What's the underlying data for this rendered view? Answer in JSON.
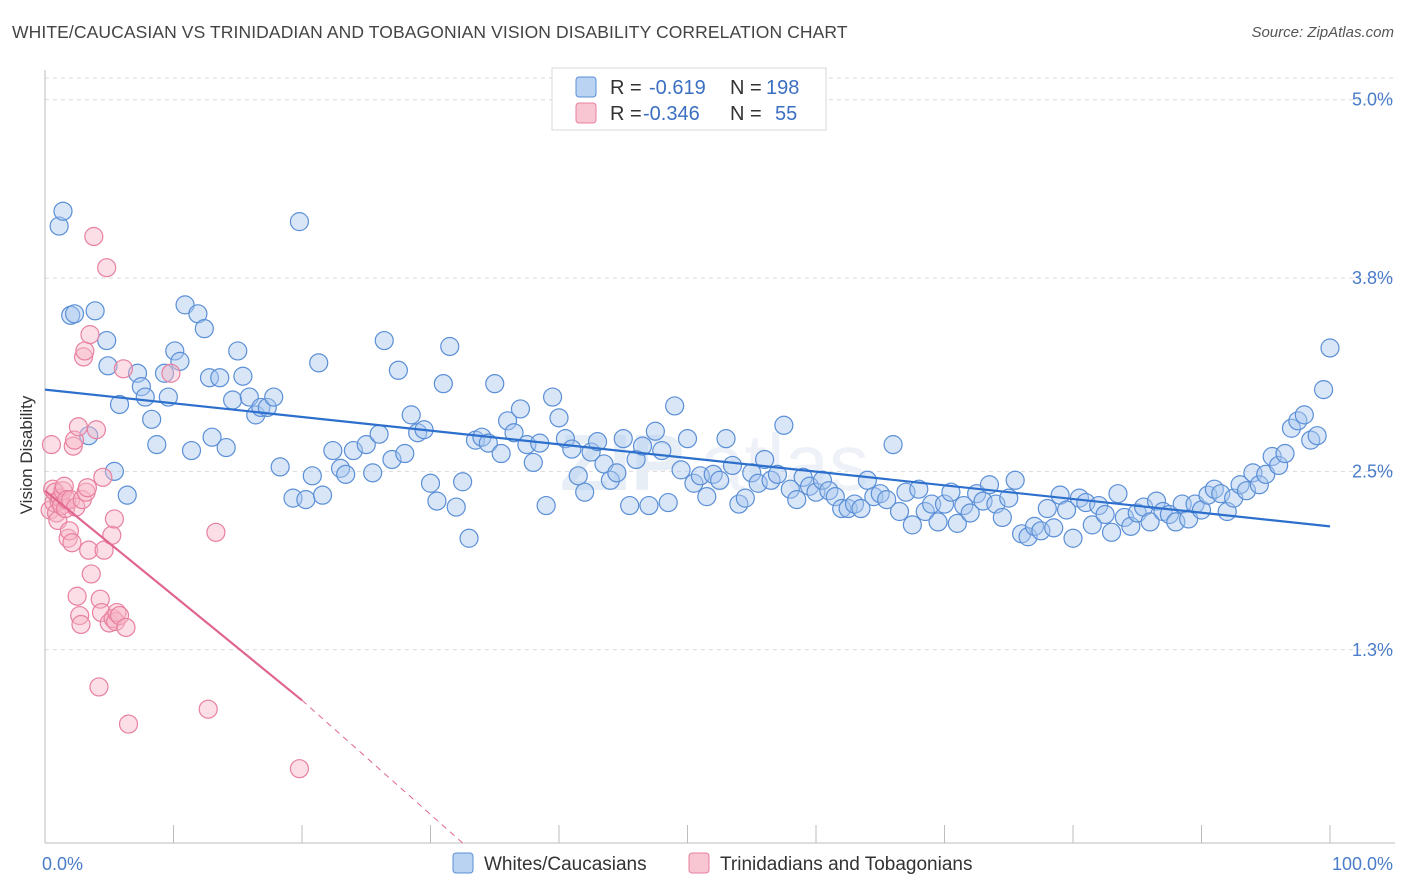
{
  "title": "WHITE/CAUCASIAN VS TRINIDADIAN AND TOBAGONIAN VISION DISABILITY CORRELATION CHART",
  "source": "Source: ZipAtlas.com",
  "colors": {
    "blue_fill": "#a9c8f0",
    "blue_stroke": "#5b8fd6",
    "blue_line": "#2c6fcc",
    "pink_fill": "#f6b6c8",
    "pink_stroke": "#e8809f",
    "pink_line": "#e0668f",
    "grid": "#d9d9d9",
    "axis_text": "#4a7cc9"
  },
  "legend": {
    "rows": [
      {
        "r_label": "R =",
        "r_value": "-0.619",
        "n_label": "N =",
        "n_value": "198"
      },
      {
        "r_label": "R =",
        "r_value": "-0.346",
        "n_label": "N =",
        "n_value": "55"
      }
    ]
  },
  "chart_data": {
    "type": "scatter",
    "title": "WHITE/CAUCASIAN VS TRINIDADIAN AND TOBAGONIAN VISION DISABILITY CORRELATION CHART",
    "xlabel": "",
    "ylabel": "Vision Disability",
    "xlim": [
      0,
      100
    ],
    "ylim": [
      0.0,
      5.2
    ],
    "x_tick_labels": [
      "0.0%",
      "100.0%"
    ],
    "y_ticks": [
      1.3,
      2.5,
      3.8,
      5.0
    ],
    "y_tick_labels": [
      "1.3%",
      "2.5%",
      "3.8%",
      "5.0%"
    ],
    "grid": "horizontal dashed",
    "legend_position": "top-center",
    "series": [
      {
        "name": "Whites/Caucasians",
        "color": "#a9c8f0",
        "trend": {
          "x": [
            0,
            100
          ],
          "y": [
            3.05,
            2.13
          ]
        },
        "points": [
          [
            1.1,
            4.15
          ],
          [
            1.4,
            4.25
          ],
          [
            2.0,
            3.55
          ],
          [
            2.3,
            3.56
          ],
          [
            3.9,
            3.58
          ],
          [
            4.8,
            3.38
          ],
          [
            4.9,
            3.21
          ],
          [
            3.4,
            2.74
          ],
          [
            5.4,
            2.5
          ],
          [
            5.8,
            2.95
          ],
          [
            6.4,
            2.34
          ],
          [
            7.2,
            3.16
          ],
          [
            7.5,
            3.07
          ],
          [
            7.8,
            3.0
          ],
          [
            8.3,
            2.85
          ],
          [
            8.7,
            2.68
          ],
          [
            9.3,
            3.16
          ],
          [
            9.6,
            3.0
          ],
          [
            10.1,
            3.31
          ],
          [
            10.5,
            3.24
          ],
          [
            10.9,
            3.62
          ],
          [
            11.4,
            2.64
          ],
          [
            11.9,
            3.56
          ],
          [
            12.4,
            3.46
          ],
          [
            12.8,
            3.13
          ],
          [
            13.0,
            2.73
          ],
          [
            13.6,
            3.13
          ],
          [
            14.1,
            2.66
          ],
          [
            14.6,
            2.98
          ],
          [
            15.0,
            3.31
          ],
          [
            15.4,
            3.14
          ],
          [
            15.9,
            3.0
          ],
          [
            16.4,
            2.88
          ],
          [
            16.8,
            2.93
          ],
          [
            17.3,
            2.93
          ],
          [
            17.8,
            3.0
          ],
          [
            18.3,
            2.53
          ],
          [
            19.3,
            2.32
          ],
          [
            19.8,
            4.18
          ],
          [
            20.3,
            2.31
          ],
          [
            20.8,
            2.47
          ],
          [
            21.3,
            3.23
          ],
          [
            21.6,
            2.34
          ],
          [
            22.4,
            2.64
          ],
          [
            23.0,
            2.52
          ],
          [
            23.4,
            2.48
          ],
          [
            24.0,
            2.64
          ],
          [
            25.0,
            2.68
          ],
          [
            25.5,
            2.49
          ],
          [
            26.0,
            2.75
          ],
          [
            26.4,
            3.38
          ],
          [
            27.0,
            2.58
          ],
          [
            27.5,
            3.18
          ],
          [
            28.0,
            2.62
          ],
          [
            28.5,
            2.88
          ],
          [
            29.0,
            2.76
          ],
          [
            29.5,
            2.78
          ],
          [
            30.0,
            2.42
          ],
          [
            30.5,
            2.3
          ],
          [
            31.0,
            3.09
          ],
          [
            31.5,
            3.34
          ],
          [
            32.0,
            2.26
          ],
          [
            32.5,
            2.43
          ],
          [
            33.0,
            2.05
          ],
          [
            33.5,
            2.71
          ],
          [
            34.0,
            2.73
          ],
          [
            34.5,
            2.69
          ],
          [
            35.0,
            3.09
          ],
          [
            35.5,
            2.62
          ],
          [
            36.0,
            2.84
          ],
          [
            36.5,
            2.76
          ],
          [
            37.0,
            2.92
          ],
          [
            37.5,
            2.68
          ],
          [
            38.0,
            2.56
          ],
          [
            38.5,
            2.69
          ],
          [
            39.0,
            2.27
          ],
          [
            39.5,
            3.0
          ],
          [
            40.0,
            2.86
          ],
          [
            40.5,
            2.72
          ],
          [
            41.0,
            2.65
          ],
          [
            41.5,
            2.47
          ],
          [
            42.0,
            2.36
          ],
          [
            42.5,
            2.63
          ],
          [
            43.0,
            2.7
          ],
          [
            43.5,
            2.55
          ],
          [
            44.0,
            2.44
          ],
          [
            44.5,
            2.49
          ],
          [
            45.0,
            2.72
          ],
          [
            45.5,
            2.27
          ],
          [
            46.0,
            2.58
          ],
          [
            46.5,
            2.67
          ],
          [
            47.0,
            2.27
          ],
          [
            47.5,
            2.77
          ],
          [
            48.0,
            2.64
          ],
          [
            48.5,
            2.29
          ],
          [
            49.0,
            2.94
          ],
          [
            49.5,
            2.51
          ],
          [
            50.0,
            2.72
          ],
          [
            50.5,
            2.42
          ],
          [
            51.0,
            2.47
          ],
          [
            51.5,
            2.33
          ],
          [
            52.0,
            2.48
          ],
          [
            52.5,
            2.44
          ],
          [
            53.0,
            2.72
          ],
          [
            53.5,
            2.54
          ],
          [
            54.0,
            2.28
          ],
          [
            54.5,
            2.32
          ],
          [
            55.0,
            2.49
          ],
          [
            55.5,
            2.42
          ],
          [
            56.0,
            2.58
          ],
          [
            56.5,
            2.44
          ],
          [
            57.0,
            2.48
          ],
          [
            57.5,
            2.81
          ],
          [
            58.0,
            2.38
          ],
          [
            58.5,
            2.31
          ],
          [
            59.0,
            2.46
          ],
          [
            59.5,
            2.4
          ],
          [
            60.0,
            2.36
          ],
          [
            60.5,
            2.44
          ],
          [
            61.0,
            2.37
          ],
          [
            61.5,
            2.33
          ],
          [
            62.0,
            2.25
          ],
          [
            62.5,
            2.25
          ],
          [
            63.0,
            2.28
          ],
          [
            63.5,
            2.25
          ],
          [
            64.0,
            2.44
          ],
          [
            64.5,
            2.33
          ],
          [
            65.0,
            2.35
          ],
          [
            65.5,
            2.31
          ],
          [
            66.0,
            2.68
          ],
          [
            66.5,
            2.23
          ],
          [
            67.0,
            2.36
          ],
          [
            67.5,
            2.14
          ],
          [
            68.0,
            2.38
          ],
          [
            68.5,
            2.23
          ],
          [
            69.0,
            2.28
          ],
          [
            69.5,
            2.16
          ],
          [
            70.0,
            2.28
          ],
          [
            70.5,
            2.36
          ],
          [
            71.0,
            2.15
          ],
          [
            71.5,
            2.27
          ],
          [
            72.0,
            2.22
          ],
          [
            72.5,
            2.35
          ],
          [
            73.0,
            2.3
          ],
          [
            73.5,
            2.41
          ],
          [
            74.0,
            2.28
          ],
          [
            74.5,
            2.19
          ],
          [
            75.0,
            2.32
          ],
          [
            75.5,
            2.44
          ],
          [
            76.0,
            2.08
          ],
          [
            76.5,
            2.06
          ],
          [
            77.0,
            2.13
          ],
          [
            77.5,
            2.1
          ],
          [
            78.0,
            2.25
          ],
          [
            78.5,
            2.12
          ],
          [
            79.0,
            2.34
          ],
          [
            79.5,
            2.24
          ],
          [
            80.0,
            2.05
          ],
          [
            80.5,
            2.32
          ],
          [
            81.0,
            2.29
          ],
          [
            81.5,
            2.14
          ],
          [
            82.0,
            2.27
          ],
          [
            82.5,
            2.21
          ],
          [
            83.0,
            2.09
          ],
          [
            83.5,
            2.35
          ],
          [
            84.0,
            2.19
          ],
          [
            84.5,
            2.13
          ],
          [
            85.0,
            2.22
          ],
          [
            85.5,
            2.26
          ],
          [
            86.0,
            2.16
          ],
          [
            86.5,
            2.3
          ],
          [
            87.0,
            2.23
          ],
          [
            87.5,
            2.21
          ],
          [
            88.0,
            2.16
          ],
          [
            88.5,
            2.28
          ],
          [
            89.0,
            2.18
          ],
          [
            89.5,
            2.28
          ],
          [
            90.0,
            2.24
          ],
          [
            90.5,
            2.34
          ],
          [
            91.0,
            2.38
          ],
          [
            91.5,
            2.35
          ],
          [
            92.0,
            2.23
          ],
          [
            92.5,
            2.32
          ],
          [
            93.0,
            2.41
          ],
          [
            93.5,
            2.37
          ],
          [
            94.0,
            2.49
          ],
          [
            94.5,
            2.41
          ],
          [
            95.0,
            2.48
          ],
          [
            95.5,
            2.6
          ],
          [
            96.0,
            2.54
          ],
          [
            96.5,
            2.62
          ],
          [
            97.0,
            2.79
          ],
          [
            97.5,
            2.84
          ],
          [
            98.0,
            2.88
          ],
          [
            98.5,
            2.71
          ],
          [
            99.0,
            2.74
          ],
          [
            99.5,
            3.05
          ],
          [
            100.0,
            3.33
          ]
        ]
      },
      {
        "name": "Trinidadians and Tobagonians",
        "color": "#f6b6c8",
        "trend": {
          "x": [
            0,
            20
          ],
          "y": [
            2.37,
            0.96
          ]
        },
        "trend_extension": {
          "x": [
            20,
            32.5
          ],
          "y": [
            0.96,
            0.0
          ]
        },
        "points": [
          [
            0.4,
            2.24
          ],
          [
            0.5,
            2.68
          ],
          [
            0.6,
            2.38
          ],
          [
            0.7,
            2.29
          ],
          [
            0.8,
            2.36
          ],
          [
            0.9,
            2.22
          ],
          [
            1.0,
            2.17
          ],
          [
            1.1,
            2.3
          ],
          [
            1.2,
            2.32
          ],
          [
            1.3,
            2.27
          ],
          [
            1.4,
            2.37
          ],
          [
            1.5,
            2.4
          ],
          [
            1.6,
            2.25
          ],
          [
            1.7,
            2.31
          ],
          [
            1.8,
            2.05
          ],
          [
            1.9,
            2.1
          ],
          [
            2.0,
            2.31
          ],
          [
            2.1,
            2.02
          ],
          [
            2.2,
            2.67
          ],
          [
            2.3,
            2.71
          ],
          [
            2.4,
            2.26
          ],
          [
            2.5,
            1.66
          ],
          [
            2.6,
            2.8
          ],
          [
            2.7,
            1.53
          ],
          [
            2.8,
            1.47
          ],
          [
            2.9,
            2.31
          ],
          [
            3.0,
            3.27
          ],
          [
            3.1,
            3.31
          ],
          [
            3.2,
            2.36
          ],
          [
            3.3,
            2.39
          ],
          [
            3.4,
            1.97
          ],
          [
            3.5,
            3.42
          ],
          [
            3.6,
            1.81
          ],
          [
            3.8,
            4.08
          ],
          [
            4.0,
            2.78
          ],
          [
            4.2,
            1.05
          ],
          [
            4.3,
            1.64
          ],
          [
            4.4,
            1.55
          ],
          [
            4.5,
            2.46
          ],
          [
            4.6,
            1.97
          ],
          [
            4.8,
            3.87
          ],
          [
            5.0,
            1.48
          ],
          [
            5.2,
            2.07
          ],
          [
            5.3,
            1.51
          ],
          [
            5.4,
            2.18
          ],
          [
            5.5,
            1.49
          ],
          [
            5.6,
            1.55
          ],
          [
            5.8,
            1.53
          ],
          [
            6.1,
            3.19
          ],
          [
            6.3,
            1.45
          ],
          [
            6.5,
            0.8
          ],
          [
            9.8,
            3.16
          ],
          [
            12.7,
            0.9
          ],
          [
            13.3,
            2.09
          ],
          [
            19.8,
            0.5
          ]
        ]
      }
    ]
  }
}
